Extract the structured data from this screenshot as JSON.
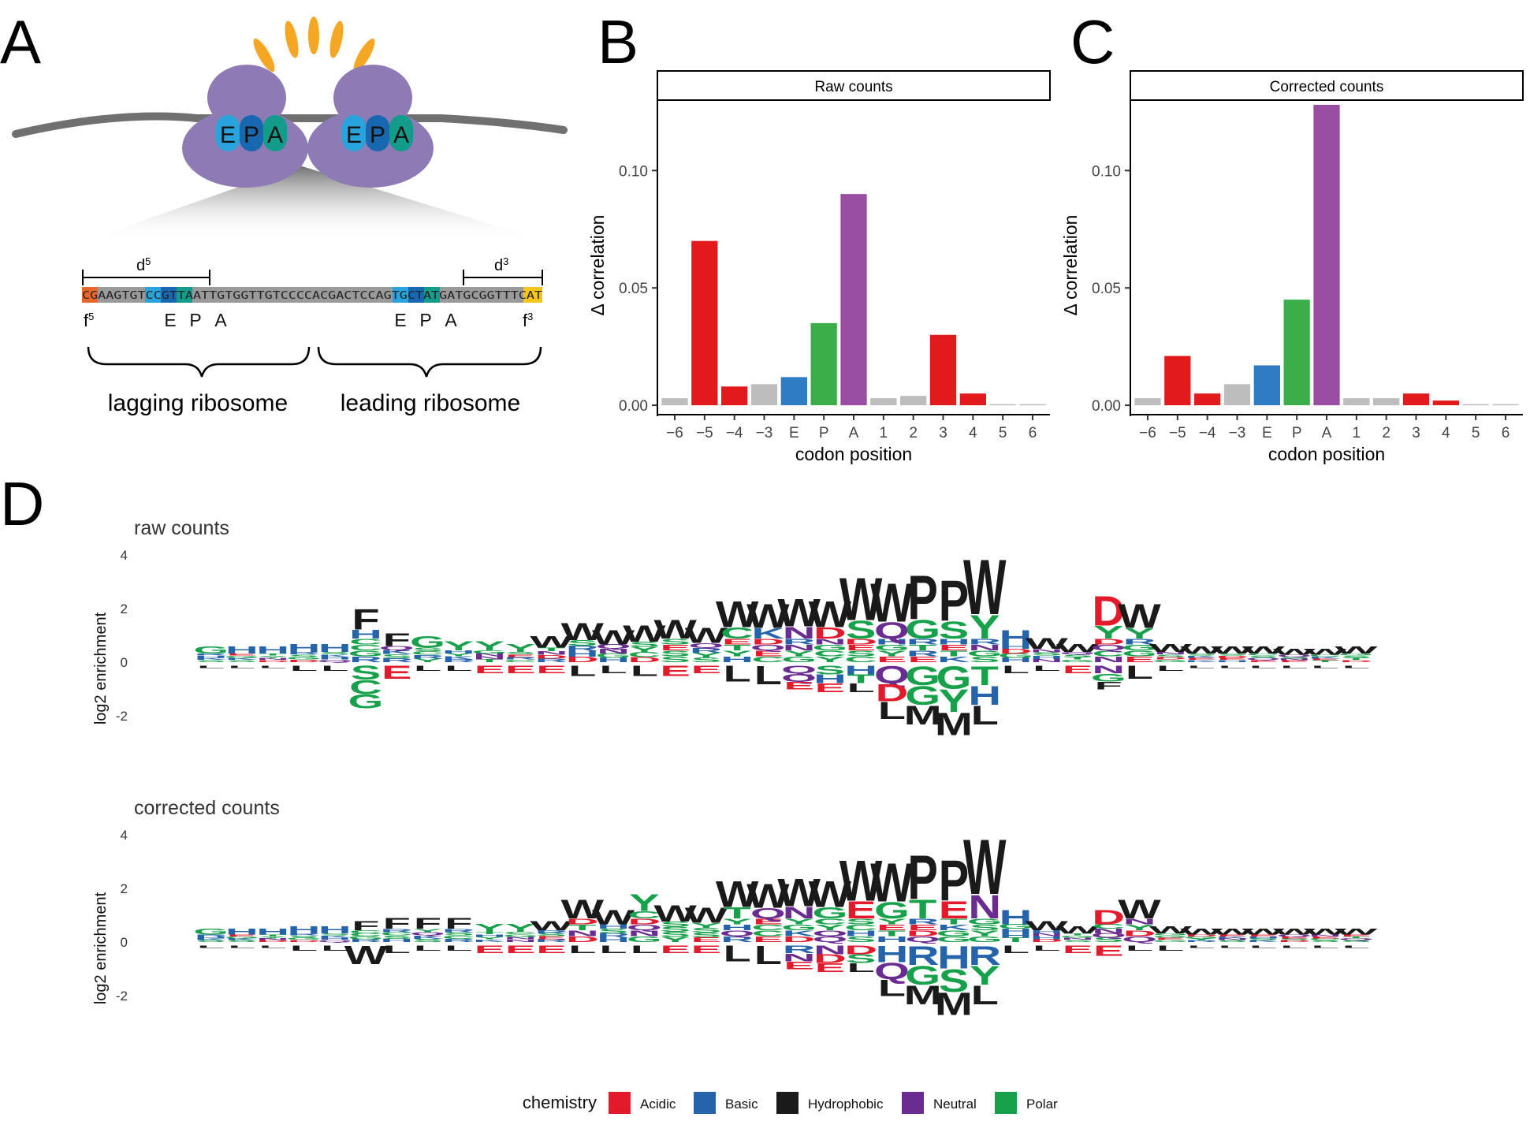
{
  "figure": {
    "panel_labels": [
      "A",
      "B",
      "C",
      "D"
    ]
  },
  "schematic": {
    "site_labels": [
      "E",
      "P",
      "A"
    ],
    "d5_label": "d",
    "d5_sup": "5",
    "d3_label": "d",
    "d3_sup": "3",
    "f5_label": "f",
    "f5_sup": "5",
    "f3_label": "f",
    "f3_sup": "3",
    "sequence": "CGAAGTGTCCGTTAATTGTGGTTGTCCCCACGACTCCAGTGCTATGATGCGGTTTCAT",
    "lower_site_labels": [
      "E",
      "P",
      "A",
      "E",
      "P",
      "A"
    ],
    "lagging": "lagging ribosome",
    "leading": "leading ribosome",
    "colors": {
      "ribosome": "#8e7bb5",
      "E": "#29a3dc",
      "P": "#1768b0",
      "A": "#139c8a",
      "burst": "#f5a623",
      "mrna": "#707070",
      "f5": "#e8662a",
      "f3": "#f5c51a"
    }
  },
  "chart_data": [
    {
      "type": "bar",
      "title": "Raw counts",
      "xlabel": "codon position",
      "ylabel": "Δ correlation",
      "categories": [
        "−6",
        "−5",
        "−4",
        "−3",
        "E",
        "P",
        "A",
        "1",
        "2",
        "3",
        "4",
        "5",
        "6"
      ],
      "values": [
        0.003,
        0.07,
        0.008,
        0.009,
        0.012,
        0.035,
        0.09,
        0.003,
        0.004,
        0.03,
        0.005,
        0.0005,
        0.0005
      ],
      "bar_colors": [
        "#bdbdbd",
        "#e31a1c",
        "#e31a1c",
        "#bdbdbd",
        "#2f7cc4",
        "#3cae49",
        "#9a4ea3",
        "#bdbdbd",
        "#bdbdbd",
        "#e31a1c",
        "#e31a1c",
        "#bdbdbd",
        "#bdbdbd"
      ],
      "yticks": [
        "0.00",
        "0.05",
        "0.10"
      ],
      "ylim": [
        -0.004,
        0.13
      ]
    },
    {
      "type": "bar",
      "title": "Corrected counts",
      "xlabel": "codon position",
      "ylabel": "Δ correlation",
      "categories": [
        "−6",
        "−5",
        "−4",
        "−3",
        "E",
        "P",
        "A",
        "1",
        "2",
        "3",
        "4",
        "5",
        "6"
      ],
      "values": [
        0.003,
        0.021,
        0.005,
        0.009,
        0.017,
        0.045,
        0.128,
        0.003,
        0.003,
        0.005,
        0.002,
        0.0005,
        0.0005
      ],
      "bar_colors": [
        "#bdbdbd",
        "#e31a1c",
        "#e31a1c",
        "#bdbdbd",
        "#2f7cc4",
        "#3cae49",
        "#9a4ea3",
        "#bdbdbd",
        "#bdbdbd",
        "#e31a1c",
        "#e31a1c",
        "#bdbdbd",
        "#bdbdbd"
      ],
      "yticks": [
        "0.00",
        "0.05",
        "0.10"
      ],
      "ylim": [
        -0.004,
        0.13
      ]
    }
  ],
  "logos": [
    {
      "title": "raw counts",
      "ylabel": "log2 enrichment",
      "yticks": [
        "4",
        "2",
        "0",
        "-2"
      ],
      "top_letters": [
        "G",
        "H",
        "H",
        "H",
        "H",
        "F",
        "F",
        "G",
        "Y",
        "Y",
        "Y",
        "W",
        "W",
        "W",
        "W",
        "W",
        "W",
        "W",
        "W",
        "W",
        "W",
        "W",
        "W",
        "P",
        "P",
        "W",
        "H",
        "W",
        "W",
        "D",
        "W",
        "W",
        "W",
        "W",
        "W",
        "W",
        "W",
        "W"
      ],
      "top_heights": [
        0.6,
        0.6,
        0.6,
        0.7,
        0.7,
        2.0,
        1.1,
        1.0,
        0.8,
        0.8,
        0.7,
        1.0,
        1.5,
        1.2,
        1.4,
        1.6,
        1.3,
        2.3,
        2.2,
        2.4,
        2.3,
        3.2,
        3.0,
        3.3,
        3.1,
        3.9,
        1.2,
        0.9,
        0.7,
        2.5,
        2.2,
        0.7,
        0.6,
        0.6,
        0.6,
        0.5,
        0.5,
        0.6
      ],
      "bottom_letters": [
        "L",
        "L",
        "L",
        "L",
        "L",
        "G",
        "E",
        "L",
        "L",
        "E",
        "E",
        "E",
        "L",
        "L",
        "L",
        "E",
        "E",
        "L",
        "L",
        "E",
        "E",
        "L",
        "L",
        "M",
        "M",
        "L",
        "L",
        "L",
        "E",
        "F",
        "L",
        "L",
        "L",
        "L",
        "L",
        "L",
        "L",
        "L"
      ],
      "bottom_depths": [
        0.1,
        0.1,
        0.1,
        0.2,
        0.2,
        1.6,
        0.5,
        0.2,
        0.2,
        0.3,
        0.3,
        0.3,
        0.4,
        0.3,
        0.4,
        0.4,
        0.3,
        0.6,
        0.7,
        0.9,
        1.0,
        1.0,
        2.0,
        2.2,
        2.6,
        2.2,
        0.3,
        0.2,
        0.3,
        0.9,
        0.5,
        0.2,
        0.1,
        0.1,
        0.1,
        0.1,
        0.1,
        0.1
      ]
    },
    {
      "title": "corrected counts",
      "ylabel": "log2 enrichment",
      "yticks": [
        "4",
        "2",
        "0",
        "-2"
      ],
      "top_letters": [
        "G",
        "H",
        "H",
        "H",
        "H",
        "F",
        "F",
        "F",
        "F",
        "Y",
        "Y",
        "W",
        "W",
        "W",
        "Y",
        "W",
        "W",
        "W",
        "W",
        "W",
        "W",
        "W",
        "W",
        "P",
        "P",
        "W",
        "H",
        "W",
        "W",
        "D",
        "W",
        "W",
        "W",
        "W",
        "W",
        "W",
        "W",
        "W"
      ],
      "top_heights": [
        0.5,
        0.5,
        0.5,
        0.6,
        0.6,
        0.8,
        0.9,
        0.9,
        0.9,
        0.7,
        0.7,
        0.8,
        1.6,
        1.2,
        1.8,
        1.4,
        1.3,
        2.3,
        2.2,
        2.4,
        2.3,
        3.1,
        3.0,
        3.3,
        3.1,
        3.9,
        1.2,
        0.8,
        0.6,
        1.2,
        1.6,
        0.6,
        0.5,
        0.5,
        0.5,
        0.5,
        0.5,
        0.5
      ],
      "bottom_letters": [
        "L",
        "L",
        "L",
        "L",
        "L",
        "W",
        "L",
        "L",
        "L",
        "E",
        "E",
        "E",
        "L",
        "L",
        "L",
        "E",
        "E",
        "L",
        "L",
        "E",
        "E",
        "L",
        "L",
        "M",
        "M",
        "L",
        "L",
        "L",
        "E",
        "E",
        "L",
        "L",
        "L",
        "L",
        "L",
        "L",
        "L",
        "L"
      ],
      "bottom_depths": [
        0.1,
        0.1,
        0.1,
        0.2,
        0.2,
        0.7,
        0.3,
        0.2,
        0.2,
        0.3,
        0.3,
        0.3,
        0.3,
        0.3,
        0.3,
        0.3,
        0.3,
        0.6,
        0.7,
        0.9,
        1.0,
        1.0,
        1.9,
        2.2,
        2.6,
        2.2,
        0.3,
        0.2,
        0.3,
        0.4,
        0.2,
        0.2,
        0.1,
        0.1,
        0.1,
        0.1,
        0.1,
        0.1
      ]
    }
  ],
  "legend": {
    "title": "chemistry",
    "items": [
      {
        "label": "Acidic",
        "color": "#e31a2c"
      },
      {
        "label": "Basic",
        "color": "#2563ab"
      },
      {
        "label": "Hydrophobic",
        "color": "#1a1a1a"
      },
      {
        "label": "Neutral",
        "color": "#6b2c91"
      },
      {
        "label": "Polar",
        "color": "#17a14b"
      }
    ]
  }
}
